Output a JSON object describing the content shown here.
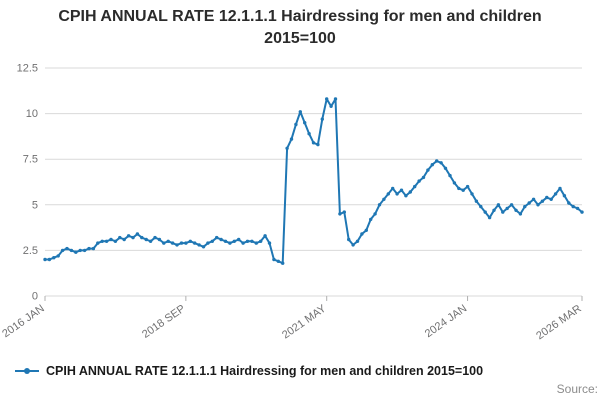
{
  "title": "CPIH ANNUAL RATE 12.1.1.1 Hairdressing for men and children 2015=100",
  "legend": {
    "label": "CPIH ANNUAL RATE 12.1.1.1 Hairdressing for men and children 2015=100"
  },
  "source_label": "Source:",
  "colors": {
    "line": "#1f77b4",
    "grid": "#d9d9d9",
    "axis_text": "#707071",
    "title_text": "#2b2b2b"
  },
  "chart_data": {
    "type": "line",
    "title": "CPIH ANNUAL RATE 12.1.1.1 Hairdressing for men and children 2015=100",
    "xlabel": "",
    "ylabel": "",
    "ylim": [
      0,
      12.5
    ],
    "yticks": [
      0,
      2.5,
      5,
      7.5,
      10,
      12.5
    ],
    "ytick_labels": [
      "0",
      "2.5",
      "5",
      "7.5",
      "10",
      "12.5"
    ],
    "x_start": "2016 JAN",
    "x_freq": "monthly",
    "x_tick_labels": [
      "2016 JAN",
      "2018 SEP",
      "2021 MAY",
      "2024 JAN",
      "2026 MAR"
    ],
    "x_tick_indices": [
      0,
      32,
      64,
      96,
      122
    ],
    "grid": "horizontal",
    "legend_position": "bottom-left",
    "values": [
      2.0,
      2.0,
      2.1,
      2.2,
      2.5,
      2.6,
      2.5,
      2.4,
      2.5,
      2.5,
      2.6,
      2.6,
      2.9,
      3.0,
      3.0,
      3.1,
      3.0,
      3.2,
      3.1,
      3.3,
      3.2,
      3.4,
      3.2,
      3.1,
      3.0,
      3.2,
      3.1,
      2.9,
      3.0,
      2.9,
      2.8,
      2.9,
      2.9,
      3.0,
      2.9,
      2.8,
      2.7,
      2.9,
      3.0,
      3.2,
      3.1,
      3.0,
      2.9,
      3.0,
      3.1,
      2.9,
      3.0,
      3.0,
      2.9,
      3.0,
      3.3,
      2.9,
      2.0,
      1.9,
      1.8,
      8.1,
      8.6,
      9.4,
      10.1,
      9.5,
      8.9,
      8.4,
      8.3,
      9.7,
      10.8,
      10.4,
      10.8,
      4.5,
      4.6,
      3.1,
      2.8,
      3.0,
      3.4,
      3.6,
      4.2,
      4.5,
      5.0,
      5.3,
      5.6,
      5.9,
      5.6,
      5.8,
      5.5,
      5.7,
      6.0,
      6.3,
      6.5,
      6.9,
      7.2,
      7.4,
      7.3,
      7.0,
      6.6,
      6.2,
      5.9,
      5.8,
      6.0,
      5.6,
      5.2,
      4.9,
      4.6,
      4.3,
      4.7,
      5.0,
      4.6,
      4.8,
      5.0,
      4.7,
      4.5,
      4.9,
      5.1,
      5.3,
      5.0,
      5.2,
      5.4,
      5.3,
      5.6,
      5.9,
      5.5,
      5.1,
      4.9,
      4.8,
      4.6
    ]
  }
}
